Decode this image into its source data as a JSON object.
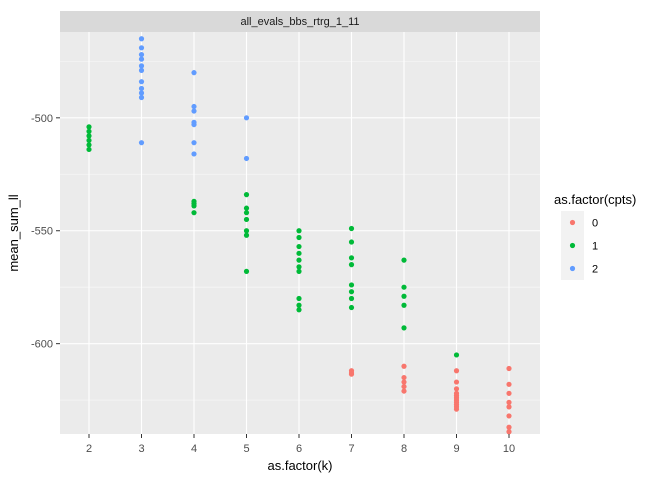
{
  "chart_data": {
    "type": "scatter",
    "facet_label": "all_evals_bbs_rtrg_1_11",
    "xlabel": "as.factor(k)",
    "ylabel": "mean_sum_ll",
    "categories": [
      "2",
      "3",
      "4",
      "5",
      "6",
      "7",
      "8",
      "9",
      "10"
    ],
    "ylim": [
      -640,
      -462
    ],
    "yticks": [
      -500,
      -550,
      -600
    ],
    "grid": true,
    "legend": {
      "title": "as.factor(cpts)",
      "placement": "right",
      "entries": [
        {
          "label": "0",
          "color": "#F8766D"
        },
        {
          "label": "1",
          "color": "#00BA38"
        },
        {
          "label": "2",
          "color": "#619CFF"
        }
      ]
    },
    "series": [
      {
        "group": "0",
        "color": "#F8766D",
        "points": [
          [
            7,
            -612
          ],
          [
            7,
            -613
          ],
          [
            7,
            -613.5
          ],
          [
            8,
            -610
          ],
          [
            8,
            -615
          ],
          [
            8,
            -617
          ],
          [
            8,
            -619
          ],
          [
            8,
            -621
          ],
          [
            9,
            -612
          ],
          [
            9,
            -617
          ],
          [
            9,
            -620
          ],
          [
            9,
            -622
          ],
          [
            9,
            -623
          ],
          [
            9,
            -624
          ],
          [
            9,
            -625
          ],
          [
            9,
            -626
          ],
          [
            9,
            -627
          ],
          [
            9,
            -628
          ],
          [
            9,
            -629
          ],
          [
            10,
            -611
          ],
          [
            10,
            -618
          ],
          [
            10,
            -622
          ],
          [
            10,
            -626
          ],
          [
            10,
            -628
          ],
          [
            10,
            -632
          ],
          [
            10,
            -637
          ],
          [
            10,
            -639
          ]
        ]
      },
      {
        "group": "1",
        "color": "#00BA38",
        "points": [
          [
            2,
            -504
          ],
          [
            2,
            -506
          ],
          [
            2,
            -508
          ],
          [
            2,
            -510
          ],
          [
            2,
            -512
          ],
          [
            2,
            -514
          ],
          [
            4,
            -537
          ],
          [
            4,
            -538
          ],
          [
            4,
            -539
          ],
          [
            4,
            -542
          ],
          [
            5,
            -534
          ],
          [
            5,
            -540
          ],
          [
            5,
            -542
          ],
          [
            5,
            -545
          ],
          [
            5,
            -550
          ],
          [
            5,
            -552
          ],
          [
            5,
            -568
          ],
          [
            6,
            -550
          ],
          [
            6,
            -553
          ],
          [
            6,
            -557
          ],
          [
            6,
            -560
          ],
          [
            6,
            -563
          ],
          [
            6,
            -566
          ],
          [
            6,
            -568
          ],
          [
            6,
            -580
          ],
          [
            6,
            -583
          ],
          [
            6,
            -585
          ],
          [
            7,
            -549
          ],
          [
            7,
            -555
          ],
          [
            7,
            -562
          ],
          [
            7,
            -565
          ],
          [
            7,
            -574
          ],
          [
            7,
            -577
          ],
          [
            7,
            -580
          ],
          [
            7,
            -584
          ],
          [
            8,
            -563
          ],
          [
            8,
            -575
          ],
          [
            8,
            -579
          ],
          [
            8,
            -583
          ],
          [
            8,
            -593
          ],
          [
            9,
            -605
          ]
        ]
      },
      {
        "group": "2",
        "color": "#619CFF",
        "points": [
          [
            3,
            -465
          ],
          [
            3,
            -469
          ],
          [
            3,
            -472
          ],
          [
            3,
            -474
          ],
          [
            3,
            -477
          ],
          [
            3,
            -479
          ],
          [
            3,
            -484
          ],
          [
            3,
            -487
          ],
          [
            3,
            -489
          ],
          [
            3,
            -491
          ],
          [
            3,
            -511
          ],
          [
            4,
            -480
          ],
          [
            4,
            -495
          ],
          [
            4,
            -497
          ],
          [
            4,
            -502
          ],
          [
            4,
            -503
          ],
          [
            4,
            -511
          ],
          [
            4,
            -516
          ],
          [
            5,
            -500
          ],
          [
            5,
            -518
          ]
        ]
      }
    ]
  }
}
